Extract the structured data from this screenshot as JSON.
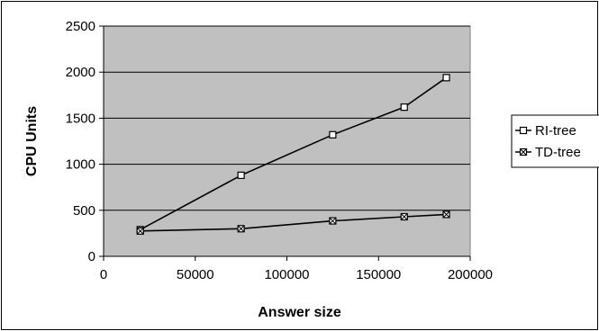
{
  "chart_data": {
    "type": "line",
    "xlabel": "Answer size",
    "ylabel": "CPU Units",
    "xlim": [
      0,
      200000
    ],
    "ylim": [
      0,
      2500
    ],
    "xticks": [
      0,
      50000,
      100000,
      150000,
      200000
    ],
    "xtick_labels": [
      "0",
      "50000",
      "100000",
      "150000",
      "200000"
    ],
    "yticks": [
      0,
      500,
      1000,
      1500,
      2000,
      2500
    ],
    "ytick_labels": [
      "0",
      "500",
      "1000",
      "1500",
      "2000",
      "2500"
    ],
    "grid": "horizontal",
    "plot_background": "#c0c0c0",
    "legend_position": "right",
    "series": [
      {
        "name": "RI-tree",
        "marker": "square",
        "color": "#000000",
        "x": [
          20000,
          75000,
          125000,
          164000,
          187000
        ],
        "y": [
          290,
          880,
          1320,
          1620,
          1940
        ]
      },
      {
        "name": "TD-tree",
        "marker": "x-box",
        "color": "#000000",
        "x": [
          20000,
          75000,
          125000,
          164000,
          187000
        ],
        "y": [
          275,
          300,
          385,
          430,
          455
        ]
      }
    ]
  }
}
